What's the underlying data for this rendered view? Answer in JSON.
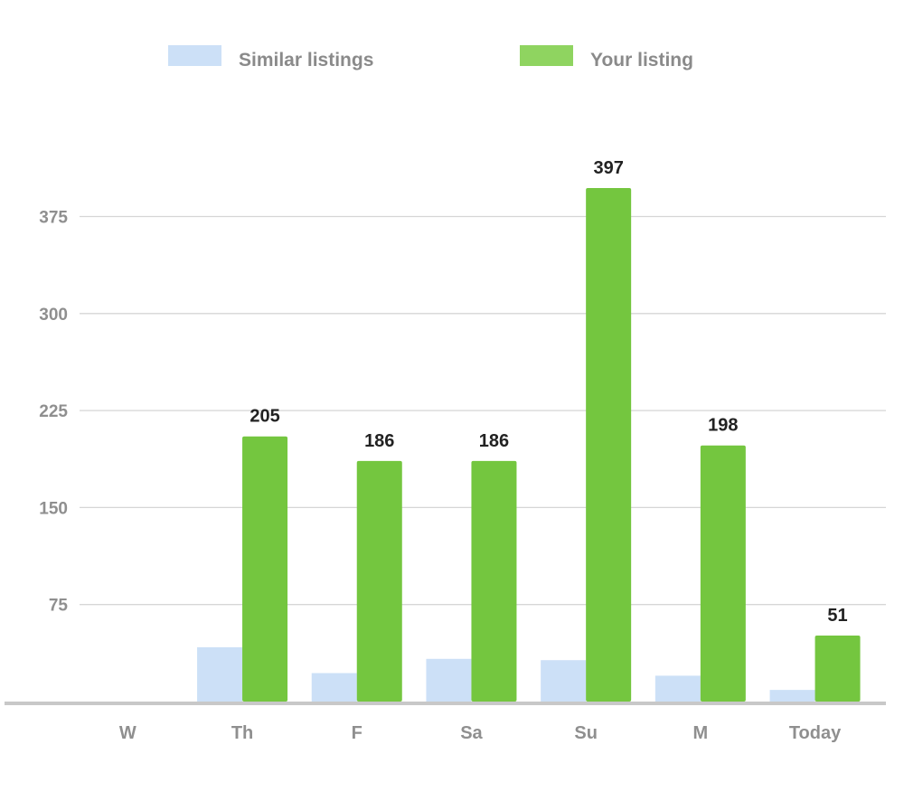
{
  "chart_data": {
    "type": "bar",
    "categories": [
      "W",
      "Th",
      "F",
      "Sa",
      "Su",
      "M",
      "Today"
    ],
    "series": [
      {
        "name": "Similar listings",
        "color": "#cce0f7",
        "values": [
          0,
          42,
          22,
          33,
          32,
          20,
          9
        ]
      },
      {
        "name": "Your listing",
        "color": "#74c63f",
        "values": [
          0,
          205,
          186,
          186,
          397,
          198,
          51
        ]
      }
    ],
    "data_labels": [
      "",
      "205",
      "186",
      "186",
      "397",
      "198",
      "51"
    ],
    "yticks": [
      75,
      150,
      225,
      300,
      375
    ],
    "ytick_labels": [
      "75",
      "150",
      "225",
      "300",
      "375"
    ],
    "ylim": [
      0,
      420
    ],
    "legend_position": "top-center",
    "grid": true,
    "title": "",
    "xlabel": "",
    "ylabel": ""
  },
  "legend_colors": {
    "similar": "#cce0f7",
    "yours": "#8fd460"
  }
}
